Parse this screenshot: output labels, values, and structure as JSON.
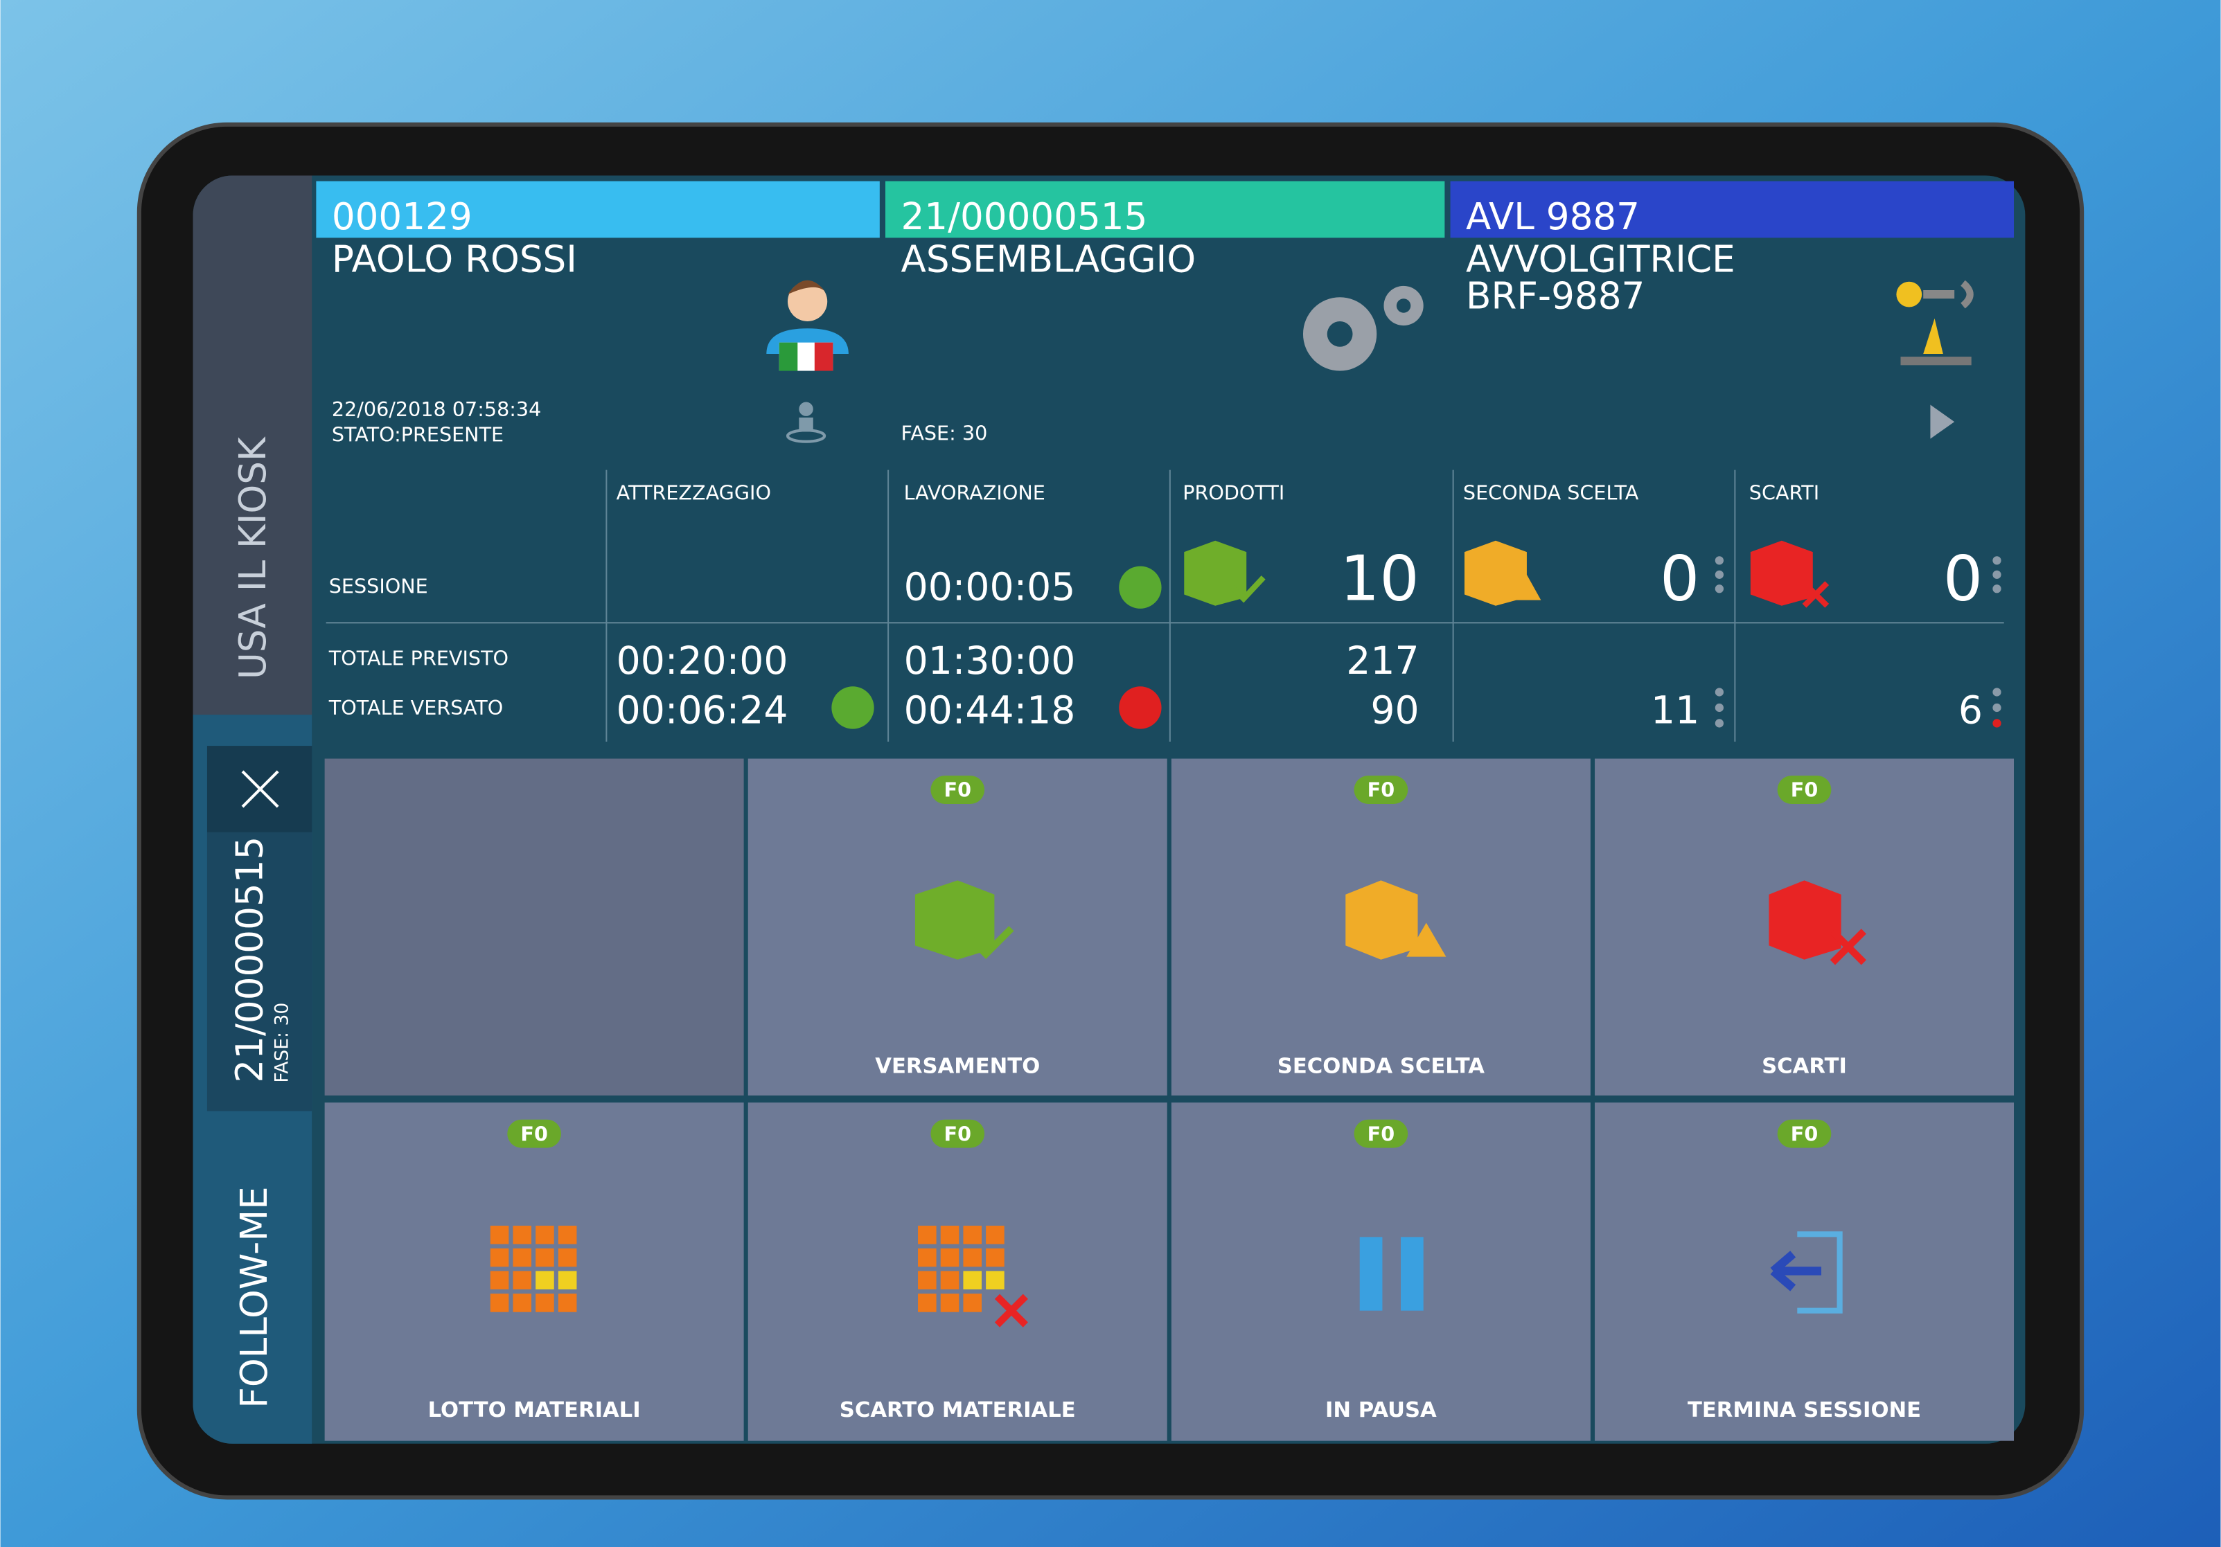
{
  "sidebar": {
    "kiosk": "USA IL KIOSK",
    "order": "21/00000515",
    "phase": "FASE: 30",
    "follow": "FOLLOW-ME"
  },
  "operator": {
    "code": "000129",
    "name": "PAOLO ROSSI",
    "datetime": "22/06/2018 07:58:34",
    "status": "STATO:PRESENTE"
  },
  "order": {
    "code": "21/00000515",
    "name": "ASSEMBLAGGIO",
    "phase": "FASE: 30"
  },
  "machine": {
    "code": "AVL 9887",
    "name": "AVVOLGITRICE",
    "model": "BRF-9887"
  },
  "stats": {
    "columns": [
      "ATTREZZAGGIO",
      "LAVORAZIONE",
      "PRODOTTI",
      "SECONDA SCELTA",
      "SCARTI"
    ],
    "rows": [
      {
        "label": "SESSIONE",
        "lavorazione": "00:00:05",
        "prodotti": 10,
        "seconda": 0,
        "scarti": 0
      },
      {
        "label": "TOTALE PREVISTO",
        "attrezzaggio": "00:20:00",
        "lavorazione": "01:30:00",
        "prodotti": 217
      },
      {
        "label": "TOTALE VERSATO",
        "attrezzaggio": "00:06:24",
        "lavorazione": "00:44:18",
        "prodotti": 90,
        "seconda": 11,
        "scarti": 6
      }
    ]
  },
  "buttons": [
    {
      "key": "F0",
      "label": "VERSAMENTO"
    },
    {
      "key": "F0",
      "label": "SECONDA SCELTA"
    },
    {
      "key": "F0",
      "label": "SCARTI"
    },
    {
      "key": "F0",
      "label": "LOTTO MATERIALI"
    },
    {
      "key": "F0",
      "label": "SCARTO MATERIALE"
    },
    {
      "key": "F0",
      "label": "IN PAUSA"
    },
    {
      "key": "F0",
      "label": "TERMINA SESSIONE"
    }
  ]
}
